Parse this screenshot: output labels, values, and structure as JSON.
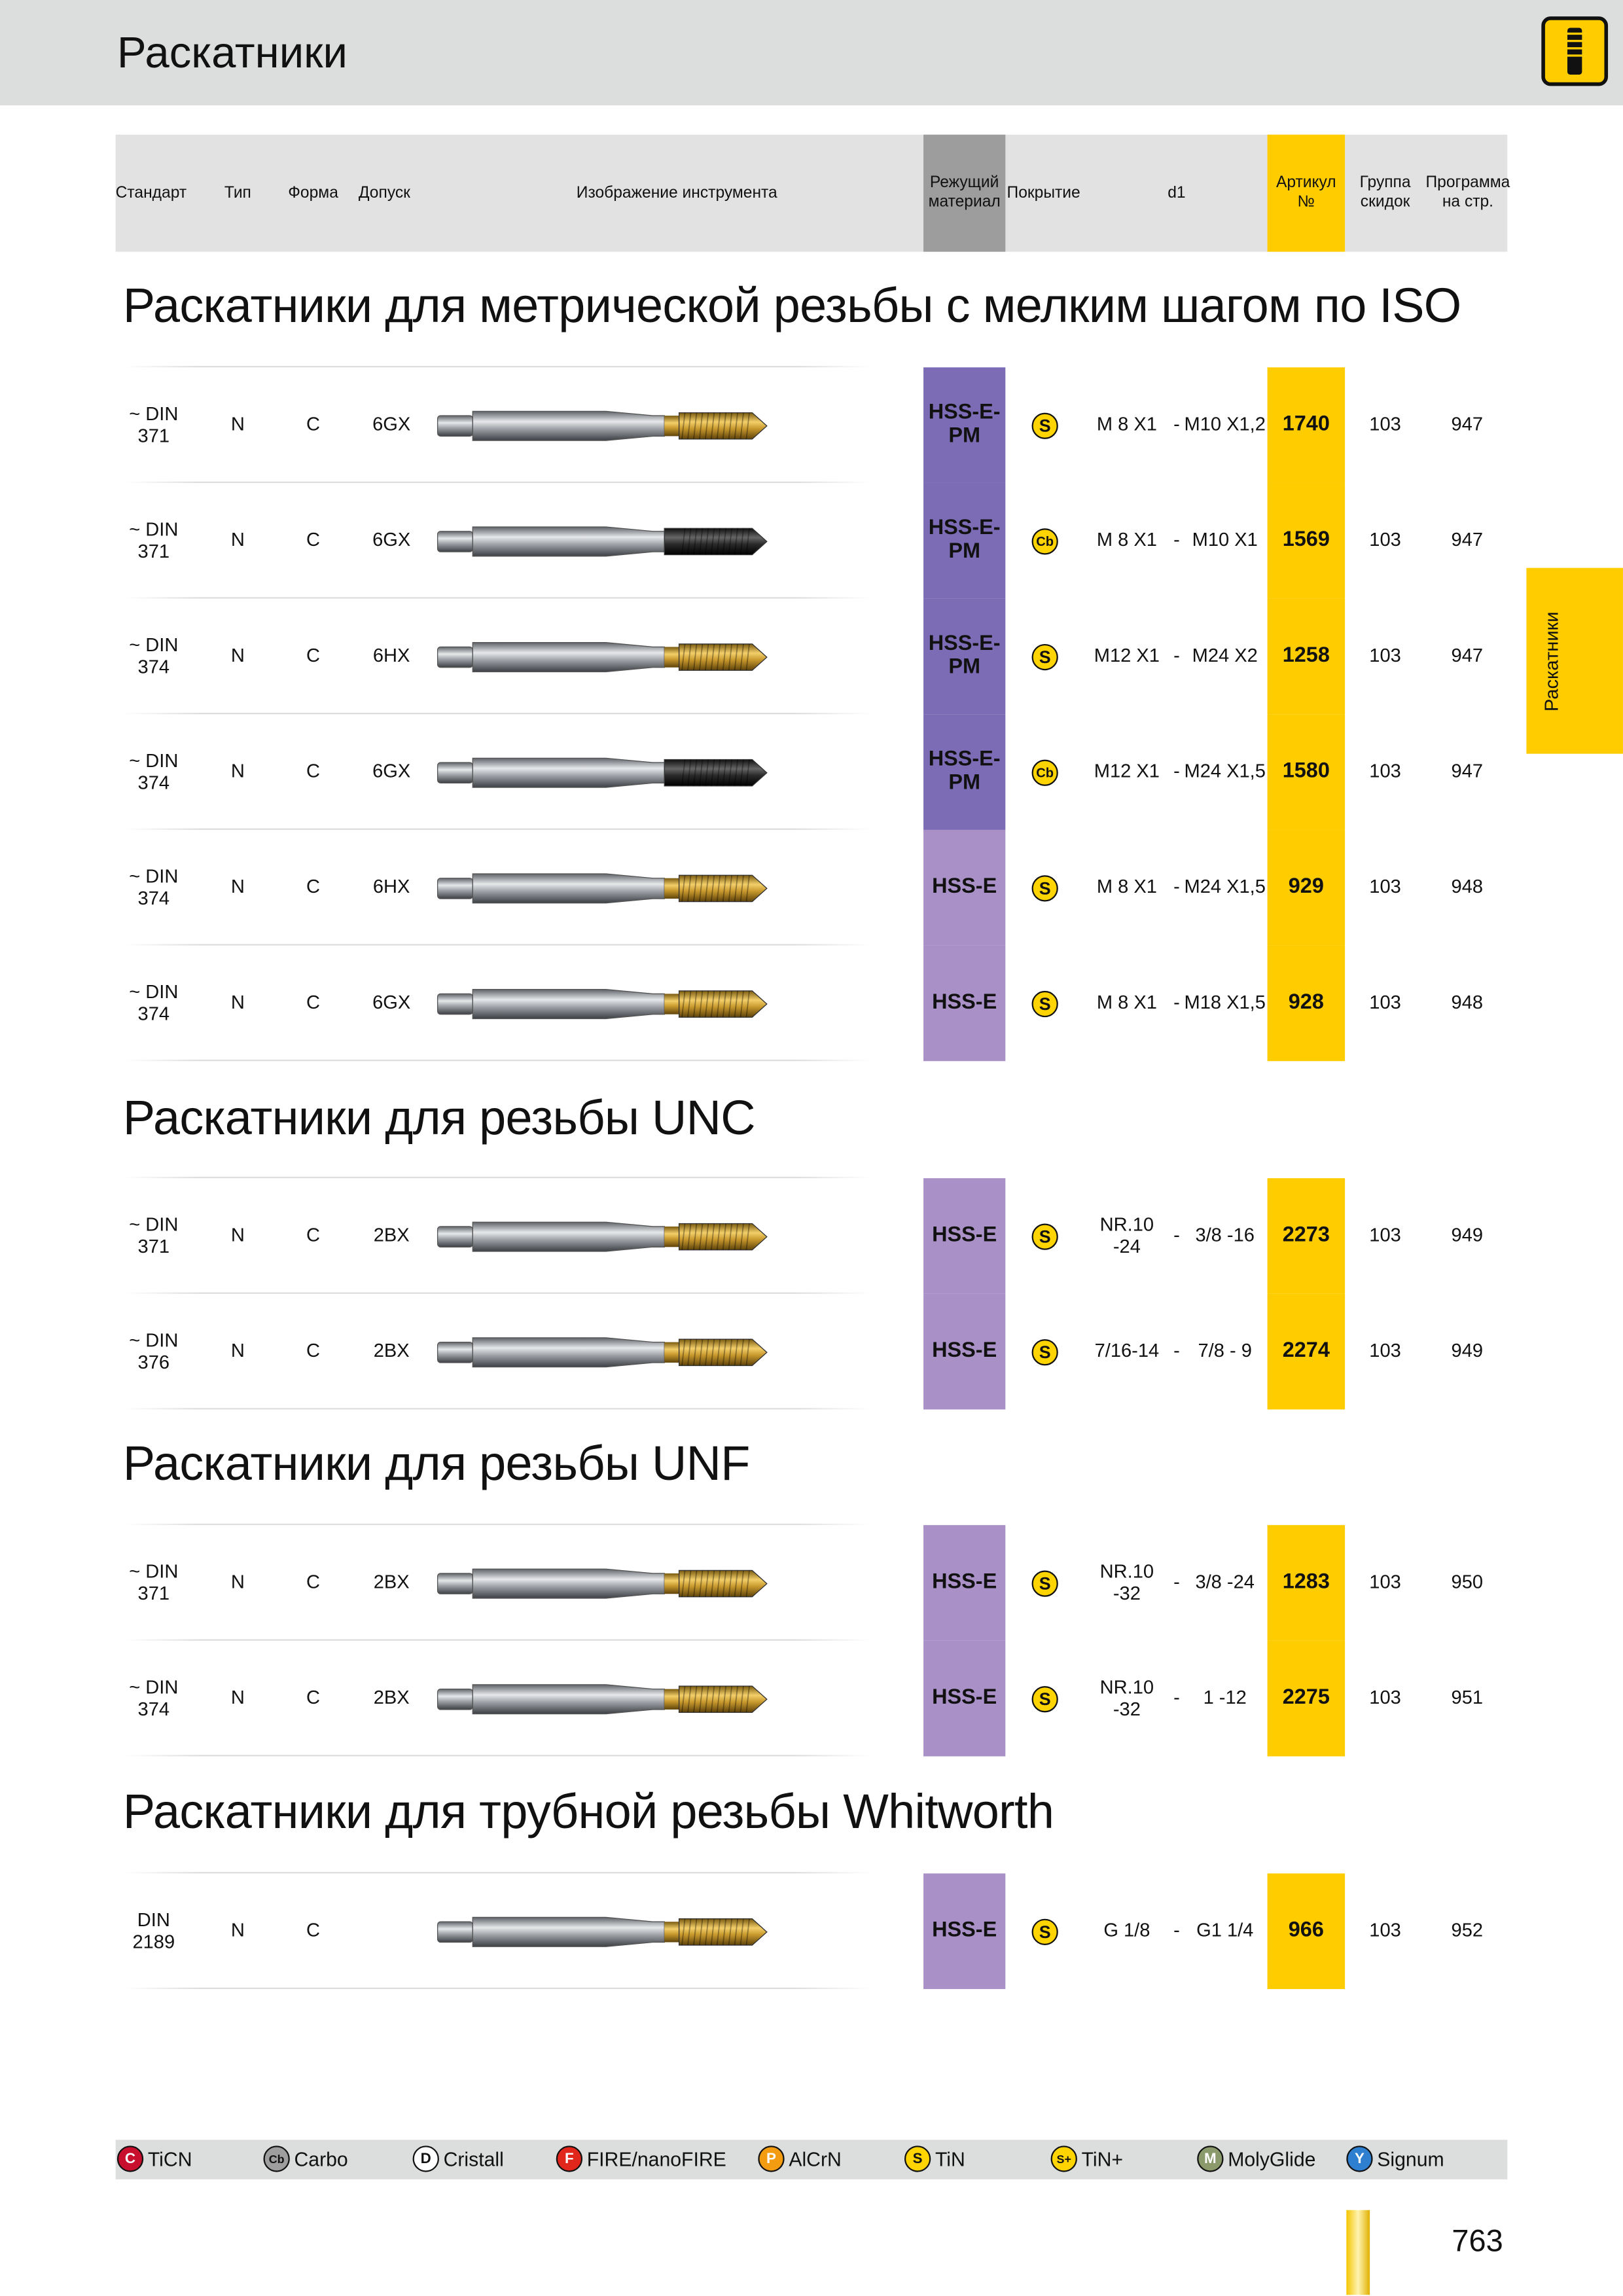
{
  "header": {
    "title": "Раскатники"
  },
  "side_tab": "Раскатники",
  "columns": [
    [
      "Стандарт"
    ],
    [
      "Тип"
    ],
    [
      "Форма"
    ],
    [
      "Допуск"
    ],
    [
      "Изображение инструмента"
    ],
    [
      "Режущий",
      "материал"
    ],
    [
      "Покрытие"
    ],
    [
      "d1"
    ],
    [
      "Артикул",
      "№"
    ],
    [
      "Группа",
      "скидок"
    ],
    [
      "Программа",
      "на стр."
    ]
  ],
  "d1_separator": "-",
  "sections": [
    {
      "title": "Раскатники для метрической резьбы с мелким шагом по ISO",
      "rows": [
        {
          "standard": [
            "~ DIN",
            "371"
          ],
          "type": "N",
          "form": "C",
          "tolerance": "6GX",
          "material": [
            "HSS-E-",
            "PM"
          ],
          "coating": "S",
          "d1_from": [
            "M 8 X1"
          ],
          "d1_to": "M10 X1,2",
          "article": "1740",
          "group": "103",
          "page": "947"
        },
        {
          "standard": [
            "~ DIN",
            "371"
          ],
          "type": "N",
          "form": "C",
          "tolerance": "6GX",
          "material": [
            "HSS-E-",
            "PM"
          ],
          "coating": "Cb",
          "d1_from": [
            "M 8 X1"
          ],
          "d1_to": "M10 X1",
          "article": "1569",
          "group": "103",
          "page": "947"
        },
        {
          "standard": [
            "~ DIN",
            "374"
          ],
          "type": "N",
          "form": "C",
          "tolerance": "6HX",
          "material": [
            "HSS-E-",
            "PM"
          ],
          "coating": "S",
          "d1_from": [
            "M12 X1"
          ],
          "d1_to": "M24 X2",
          "article": "1258",
          "group": "103",
          "page": "947"
        },
        {
          "standard": [
            "~ DIN",
            "374"
          ],
          "type": "N",
          "form": "C",
          "tolerance": "6GX",
          "material": [
            "HSS-E-",
            "PM"
          ],
          "coating": "Cb",
          "d1_from": [
            "M12 X1"
          ],
          "d1_to": "M24 X1,5",
          "article": "1580",
          "group": "103",
          "page": "947"
        },
        {
          "standard": [
            "~ DIN",
            "374"
          ],
          "type": "N",
          "form": "C",
          "tolerance": "6HX",
          "material": [
            "HSS-E"
          ],
          "coating": "S",
          "d1_from": [
            "M 8 X1"
          ],
          "d1_to": "M24 X1,5",
          "article": "929",
          "group": "103",
          "page": "948"
        },
        {
          "standard": [
            "~ DIN",
            "374"
          ],
          "type": "N",
          "form": "C",
          "tolerance": "6GX",
          "material": [
            "HSS-E"
          ],
          "coating": "S",
          "d1_from": [
            "M 8 X1"
          ],
          "d1_to": "M18 X1,5",
          "article": "928",
          "group": "103",
          "page": "948"
        }
      ]
    },
    {
      "title": "Раскатники для резьбы UNC",
      "rows": [
        {
          "standard": [
            "~ DIN",
            "371"
          ],
          "type": "N",
          "form": "C",
          "tolerance": "2BX",
          "material": [
            "HSS-E"
          ],
          "coating": "S",
          "d1_from": [
            "NR.10",
            "-24"
          ],
          "d1_to": "3/8 -16",
          "article": "2273",
          "group": "103",
          "page": "949"
        },
        {
          "standard": [
            "~ DIN",
            "376"
          ],
          "type": "N",
          "form": "C",
          "tolerance": "2BX",
          "material": [
            "HSS-E"
          ],
          "coating": "S",
          "d1_from": [
            "7/16-14"
          ],
          "d1_to": "7/8 - 9",
          "article": "2274",
          "group": "103",
          "page": "949"
        }
      ]
    },
    {
      "title": "Раскатники для резьбы UNF",
      "rows": [
        {
          "standard": [
            "~ DIN",
            "371"
          ],
          "type": "N",
          "form": "C",
          "tolerance": "2BX",
          "material": [
            "HSS-E"
          ],
          "coating": "S",
          "d1_from": [
            "NR.10",
            "-32"
          ],
          "d1_to": "3/8 -24",
          "article": "1283",
          "group": "103",
          "page": "950"
        },
        {
          "standard": [
            "~ DIN",
            "374"
          ],
          "type": "N",
          "form": "C",
          "tolerance": "2BX",
          "material": [
            "HSS-E"
          ],
          "coating": "S",
          "d1_from": [
            "NR.10",
            "-32"
          ],
          "d1_to": "1 -12",
          "article": "2275",
          "group": "103",
          "page": "951"
        }
      ]
    },
    {
      "title": "Раскатники для трубной резьбы Whitworth",
      "rows": [
        {
          "standard": [
            "DIN",
            "2189"
          ],
          "type": "N",
          "form": "C",
          "material": [
            "HSS-E"
          ],
          "coating": "S",
          "d1_from": [
            "G 1/8"
          ],
          "d1_to": "G1 1/4",
          "article": "966",
          "group": "103",
          "page": "952"
        }
      ]
    }
  ],
  "legend": [
    {
      "code": "C",
      "label": "TiCN",
      "color": "#c8102e"
    },
    {
      "code": "Cb",
      "label": "Carbo",
      "color": "#9e9e9e"
    },
    {
      "code": "D",
      "label": "Cristall",
      "color": "#ffffff"
    },
    {
      "code": "F",
      "label": "FIRE/nanoFIRE",
      "color": "#e1261c"
    },
    {
      "code": "P",
      "label": "AlCrN",
      "color": "#f39c12"
    },
    {
      "code": "S",
      "label": "TiN",
      "color": "#ffd400"
    },
    {
      "code": "S+",
      "label": "TiN+",
      "color": "#ffd400"
    },
    {
      "code": "M",
      "label": "MolyGlide",
      "color": "#8a9a6b"
    },
    {
      "code": "Y",
      "label": "Signum",
      "color": "#2f7fd1"
    }
  ],
  "page_number": "763"
}
